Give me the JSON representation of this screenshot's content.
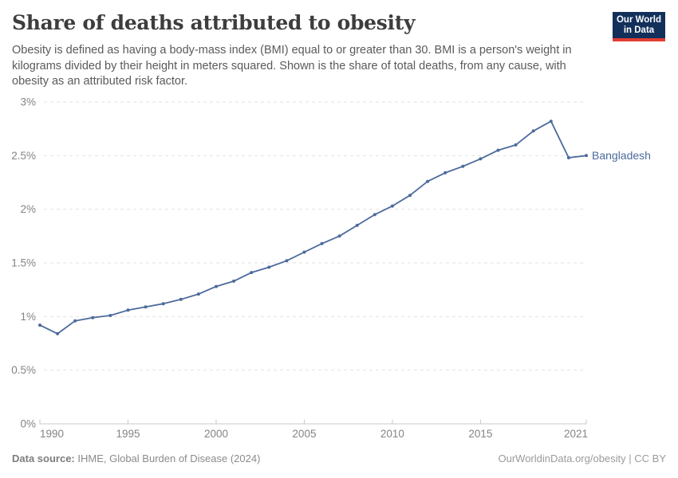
{
  "header": {
    "title": "Share of deaths attributed to obesity",
    "subtitle_lines": [
      "Obesity is defined as having a body-mass index (BMI) equal to or greater than 30. BMI is a person's weight in",
      "kilograms divided by their height in meters squared. Shown is the share of total deaths, from any cause, with",
      "obesity as an attributed risk factor."
    ]
  },
  "logo": {
    "line1": "Our World",
    "line2": "in Data",
    "bg_color": "#12305a",
    "bar_color": "#e23d33"
  },
  "chart_data": {
    "type": "line",
    "title": "Share of deaths attributed to obesity",
    "x": [
      1990,
      1991,
      1992,
      1993,
      1994,
      1995,
      1996,
      1997,
      1998,
      1999,
      2000,
      2001,
      2002,
      2003,
      2004,
      2005,
      2006,
      2007,
      2008,
      2009,
      2010,
      2011,
      2012,
      2013,
      2014,
      2015,
      2016,
      2017,
      2018,
      2019,
      2020,
      2021
    ],
    "series": [
      {
        "name": "Bangladesh",
        "color": "#4c6a9c",
        "values": [
          0.92,
          0.84,
          0.96,
          0.99,
          1.01,
          1.06,
          1.09,
          1.12,
          1.16,
          1.21,
          1.28,
          1.33,
          1.41,
          1.46,
          1.52,
          1.6,
          1.68,
          1.75,
          1.85,
          1.95,
          2.03,
          2.13,
          2.26,
          2.34,
          2.4,
          2.47,
          2.55,
          2.6,
          2.73,
          2.82,
          2.48,
          2.5
        ]
      }
    ],
    "unit": "%",
    "xlabel": "",
    "ylabel": "",
    "xlim": [
      1990,
      2021
    ],
    "ylim": [
      0,
      3
    ],
    "ytick_values": [
      0,
      0.5,
      1,
      1.5,
      2,
      2.5,
      3
    ],
    "ytick_labels": [
      "0%",
      "0.5%",
      "1%",
      "1.5%",
      "2%",
      "2.5%",
      "3%"
    ],
    "xticks": [
      1990,
      1995,
      2000,
      2005,
      2010,
      2015,
      2021
    ],
    "grid": "horizontal-dashed",
    "legend_position": "end-of-line",
    "entity_label": "Bangladesh"
  },
  "footer": {
    "source_label": "Data source:",
    "source_text": "IHME, Global Burden of Disease (2024)",
    "credit": "OurWorldinData.org/obesity | CC BY"
  },
  "colors": {
    "line": "#4c6a9c",
    "gridline": "#e2e2e2",
    "axis": "#c9c9c9",
    "tick_text": "#848484",
    "title_text": "#3d3d3d",
    "subtitle_text": "#5a5a5a"
  }
}
